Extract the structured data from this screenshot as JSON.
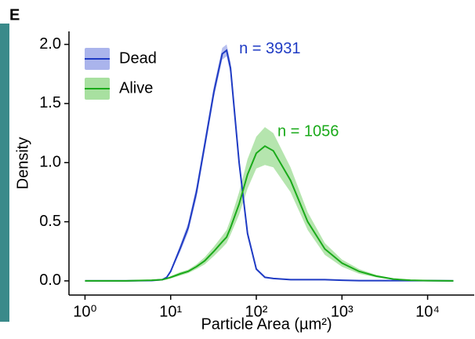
{
  "panel_label": "E",
  "chart_data": {
    "type": "line",
    "log_x": true,
    "xlabel": "Particle Area (µm²)",
    "ylabel": "Density",
    "x": [
      1,
      3,
      6,
      8,
      9,
      10,
      13,
      16,
      20,
      25,
      32,
      40,
      45,
      50,
      63,
      79,
      100,
      126,
      158,
      251,
      398,
      631,
      1000,
      1585,
      2512,
      3981,
      6310,
      10000,
      20000
    ],
    "xlim": [
      0.65,
      35000
    ],
    "xticks": [
      {
        "value": 1,
        "label": "10⁰"
      },
      {
        "value": 10,
        "label": "10¹"
      },
      {
        "value": 100,
        "label": "10²"
      },
      {
        "value": 1000,
        "label": "10³"
      },
      {
        "value": 10000,
        "label": "10⁴"
      }
    ],
    "ylim": [
      -0.12,
      2.11
    ],
    "yticks": [
      {
        "value": 0,
        "label": "0.0"
      },
      {
        "value": 0.5,
        "label": "0.5"
      },
      {
        "value": 1,
        "label": "1.0"
      },
      {
        "value": 1.5,
        "label": "1.5"
      },
      {
        "value": 2,
        "label": "2.0"
      }
    ],
    "series": [
      {
        "name": "Dead",
        "color": "#1f3bc4",
        "band_color": "#aab4ec",
        "annotation": "n = 3931",
        "values": [
          0,
          0,
          0.003,
          0.01,
          0.03,
          0.08,
          0.28,
          0.45,
          0.75,
          1.15,
          1.6,
          1.92,
          1.95,
          1.8,
          1.0,
          0.4,
          0.1,
          0.03,
          0.02,
          0.01,
          0.01,
          0.01,
          0.005,
          0.002,
          0.002,
          0.002,
          0.002,
          0.002,
          0
        ],
        "lower": [
          0,
          0,
          0.002,
          0.008,
          0.025,
          0.07,
          0.25,
          0.41,
          0.7,
          1.1,
          1.55,
          1.87,
          1.9,
          1.75,
          0.96,
          0.37,
          0.09,
          0.025,
          0.015,
          0.008,
          0.008,
          0.008,
          0.004,
          0.001,
          0.001,
          0.001,
          0.001,
          0.001,
          0
        ],
        "upper": [
          0,
          0,
          0.004,
          0.012,
          0.035,
          0.09,
          0.31,
          0.49,
          0.8,
          1.2,
          1.65,
          1.97,
          2.0,
          1.85,
          1.04,
          0.43,
          0.11,
          0.035,
          0.025,
          0.012,
          0.012,
          0.012,
          0.006,
          0.003,
          0.003,
          0.003,
          0.003,
          0.003,
          0
        ]
      },
      {
        "name": "Alive",
        "color": "#1aaa1a",
        "band_color": "#a8e0a0",
        "annotation": "n = 1056",
        "values": [
          0,
          0,
          0.005,
          0.01,
          0.02,
          0.03,
          0.06,
          0.08,
          0.12,
          0.17,
          0.25,
          0.33,
          0.37,
          0.45,
          0.65,
          0.9,
          1.08,
          1.14,
          1.1,
          0.85,
          0.5,
          0.27,
          0.15,
          0.08,
          0.04,
          0.015,
          0.005,
          0.002,
          0
        ],
        "lower": [
          0,
          0,
          0.003,
          0.007,
          0.015,
          0.02,
          0.045,
          0.065,
          0.1,
          0.14,
          0.21,
          0.28,
          0.32,
          0.39,
          0.56,
          0.78,
          0.95,
          0.98,
          0.96,
          0.75,
          0.43,
          0.22,
          0.12,
          0.06,
          0.03,
          0.01,
          0.003,
          0.001,
          0
        ],
        "upper": [
          0,
          0,
          0.007,
          0.013,
          0.025,
          0.04,
          0.075,
          0.095,
          0.14,
          0.2,
          0.29,
          0.38,
          0.43,
          0.52,
          0.75,
          1.03,
          1.22,
          1.3,
          1.25,
          0.96,
          0.58,
          0.32,
          0.18,
          0.1,
          0.05,
          0.02,
          0.007,
          0.003,
          0
        ]
      }
    ]
  }
}
